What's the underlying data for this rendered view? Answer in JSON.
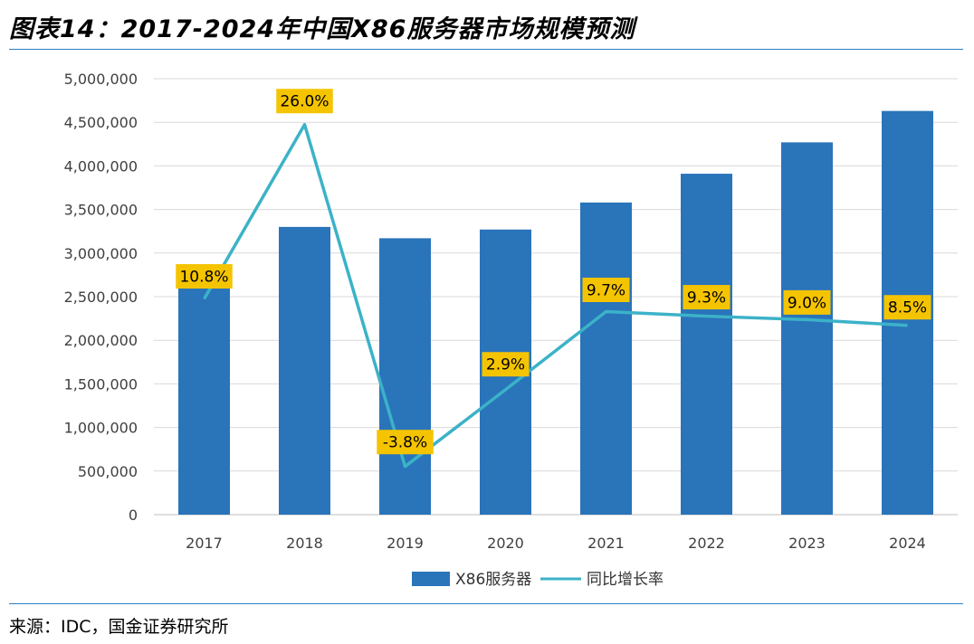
{
  "page": {
    "title": "图表14：2017-2024年中国X86服务器市场规模预测",
    "source": "来源：IDC，国金证券研究所"
  },
  "colors": {
    "bar": "#2a74ba",
    "line": "#3cb2c8",
    "label_bg": "#f5c400",
    "rule": "#2b7fc4"
  },
  "chart_data": {
    "type": "bar",
    "categories": [
      "2017",
      "2018",
      "2019",
      "2020",
      "2021",
      "2022",
      "2023",
      "2024"
    ],
    "series": [
      {
        "name": "X86服务器",
        "type": "bar",
        "axis": "left",
        "values": [
          2620000,
          3300000,
          3170000,
          3270000,
          3580000,
          3910000,
          4270000,
          4630000
        ]
      },
      {
        "name": "同比增长率",
        "type": "line",
        "axis": "right",
        "values": [
          10.8,
          26.0,
          -3.8,
          2.9,
          9.7,
          9.3,
          9.0,
          8.5
        ],
        "labels": [
          "10.8%",
          "26.0%",
          "-3.8%",
          "2.9%",
          "9.7%",
          "9.3%",
          "9.0%",
          "8.5%"
        ]
      }
    ],
    "y_ticks": [
      "0",
      "500,000",
      "1,000,000",
      "1,500,000",
      "2,000,000",
      "2,500,000",
      "3,000,000",
      "3,500,000",
      "4,000,000",
      "4,500,000",
      "5,000,000"
    ],
    "ylim": [
      0,
      5000000
    ],
    "y2lim": [
      -8,
      30
    ],
    "y2_axis_visible": false,
    "grid": true,
    "legend_position": "bottom"
  }
}
